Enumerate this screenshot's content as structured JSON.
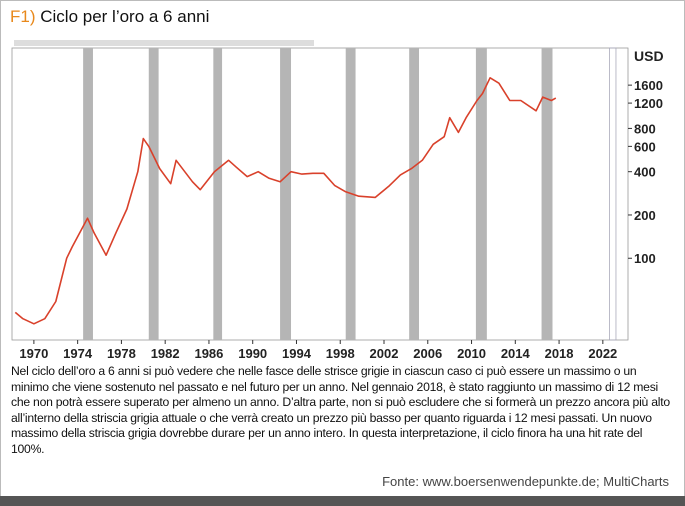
{
  "figure_number": "F1)",
  "caption": "Nel ciclo dell’oro a 6 anni si può vedere che nelle fasce delle strisce grigie in ciascun caso ci può essere un massimo o un minimo che viene sostenuto nel passato e nel futuro per un anno. Nel gennaio 2018, è stato raggiunto un massimo di 12 mesi che non potrà essere superato per almeno un anno. D’altra parte, non si può escludere che si formerà un prezzo ancora più alto all’interno della striscia grigia attuale o che verrà creato un prezzo più basso per quanto riguarda i 12 mesi passati. Un nuovo massimo della striscia grigia dovrebbe durare per un anno intero. In questa interpretazione, il ciclo finora ha una hit rate del 100%.",
  "source": "Fonte: www.boersenwendepunkte.de; MultiCharts",
  "chart_data": {
    "type": "line",
    "title": "Ciclo per l’oro a 6 anni",
    "y_unit": "USD",
    "log_y": true,
    "xlim": [
      1968,
      2024.3
    ],
    "ylim": [
      27,
      2900
    ],
    "xticks": [
      1970,
      1974,
      1978,
      1982,
      1986,
      1990,
      1994,
      1998,
      2002,
      2006,
      2010,
      2014,
      2018,
      2022
    ],
    "yticks": [
      100,
      200,
      400,
      600,
      800,
      1200,
      1600
    ],
    "bands": [
      [
        1974.5,
        1975.4
      ],
      [
        1980.5,
        1981.4
      ],
      [
        1986.4,
        1987.2
      ],
      [
        1992.5,
        1993.5
      ],
      [
        1998.5,
        1999.4
      ],
      [
        2004.3,
        2005.2
      ],
      [
        2010.4,
        2011.4
      ],
      [
        2016.4,
        2017.4
      ]
    ],
    "future_band": [
      2022.6,
      2023.2
    ],
    "band_color": "#b5b5b5",
    "series": [
      {
        "color": "#d9412b",
        "x": [
          1968.3,
          1969,
          1970,
          1971,
          1972,
          1973,
          1973.5,
          1974.9,
          1975.5,
          1976.6,
          1977.5,
          1978.5,
          1979.5,
          1980.0,
          1980.5,
          1981.5,
          1982.5,
          1983.0,
          1984.5,
          1985.2,
          1986.5,
          1987.8,
          1988.5,
          1989.5,
          1990.5,
          1991.5,
          1992.5,
          1993.5,
          1994.5,
          1995.5,
          1996.5,
          1997.5,
          1998.5,
          1999.7,
          2001.2,
          2002.5,
          2003.5,
          2004.5,
          2005.5,
          2006.5,
          2007.5,
          2008.0,
          2008.8,
          2009.5,
          2010.5,
          2011.0,
          2011.7,
          2012.5,
          2013.5,
          2014.5,
          2015.9,
          2016.5,
          2017.3,
          2017.7
        ],
        "values": [
          42,
          38,
          35,
          38,
          50,
          100,
          120,
          190,
          150,
          105,
          150,
          220,
          400,
          680,
          600,
          420,
          330,
          480,
          340,
          300,
          400,
          480,
          430,
          370,
          400,
          360,
          340,
          400,
          385,
          390,
          390,
          320,
          290,
          270,
          265,
          320,
          380,
          420,
          480,
          620,
          700,
          950,
          750,
          950,
          1250,
          1400,
          1800,
          1650,
          1250,
          1250,
          1060,
          1320,
          1250,
          1300
        ]
      }
    ]
  }
}
